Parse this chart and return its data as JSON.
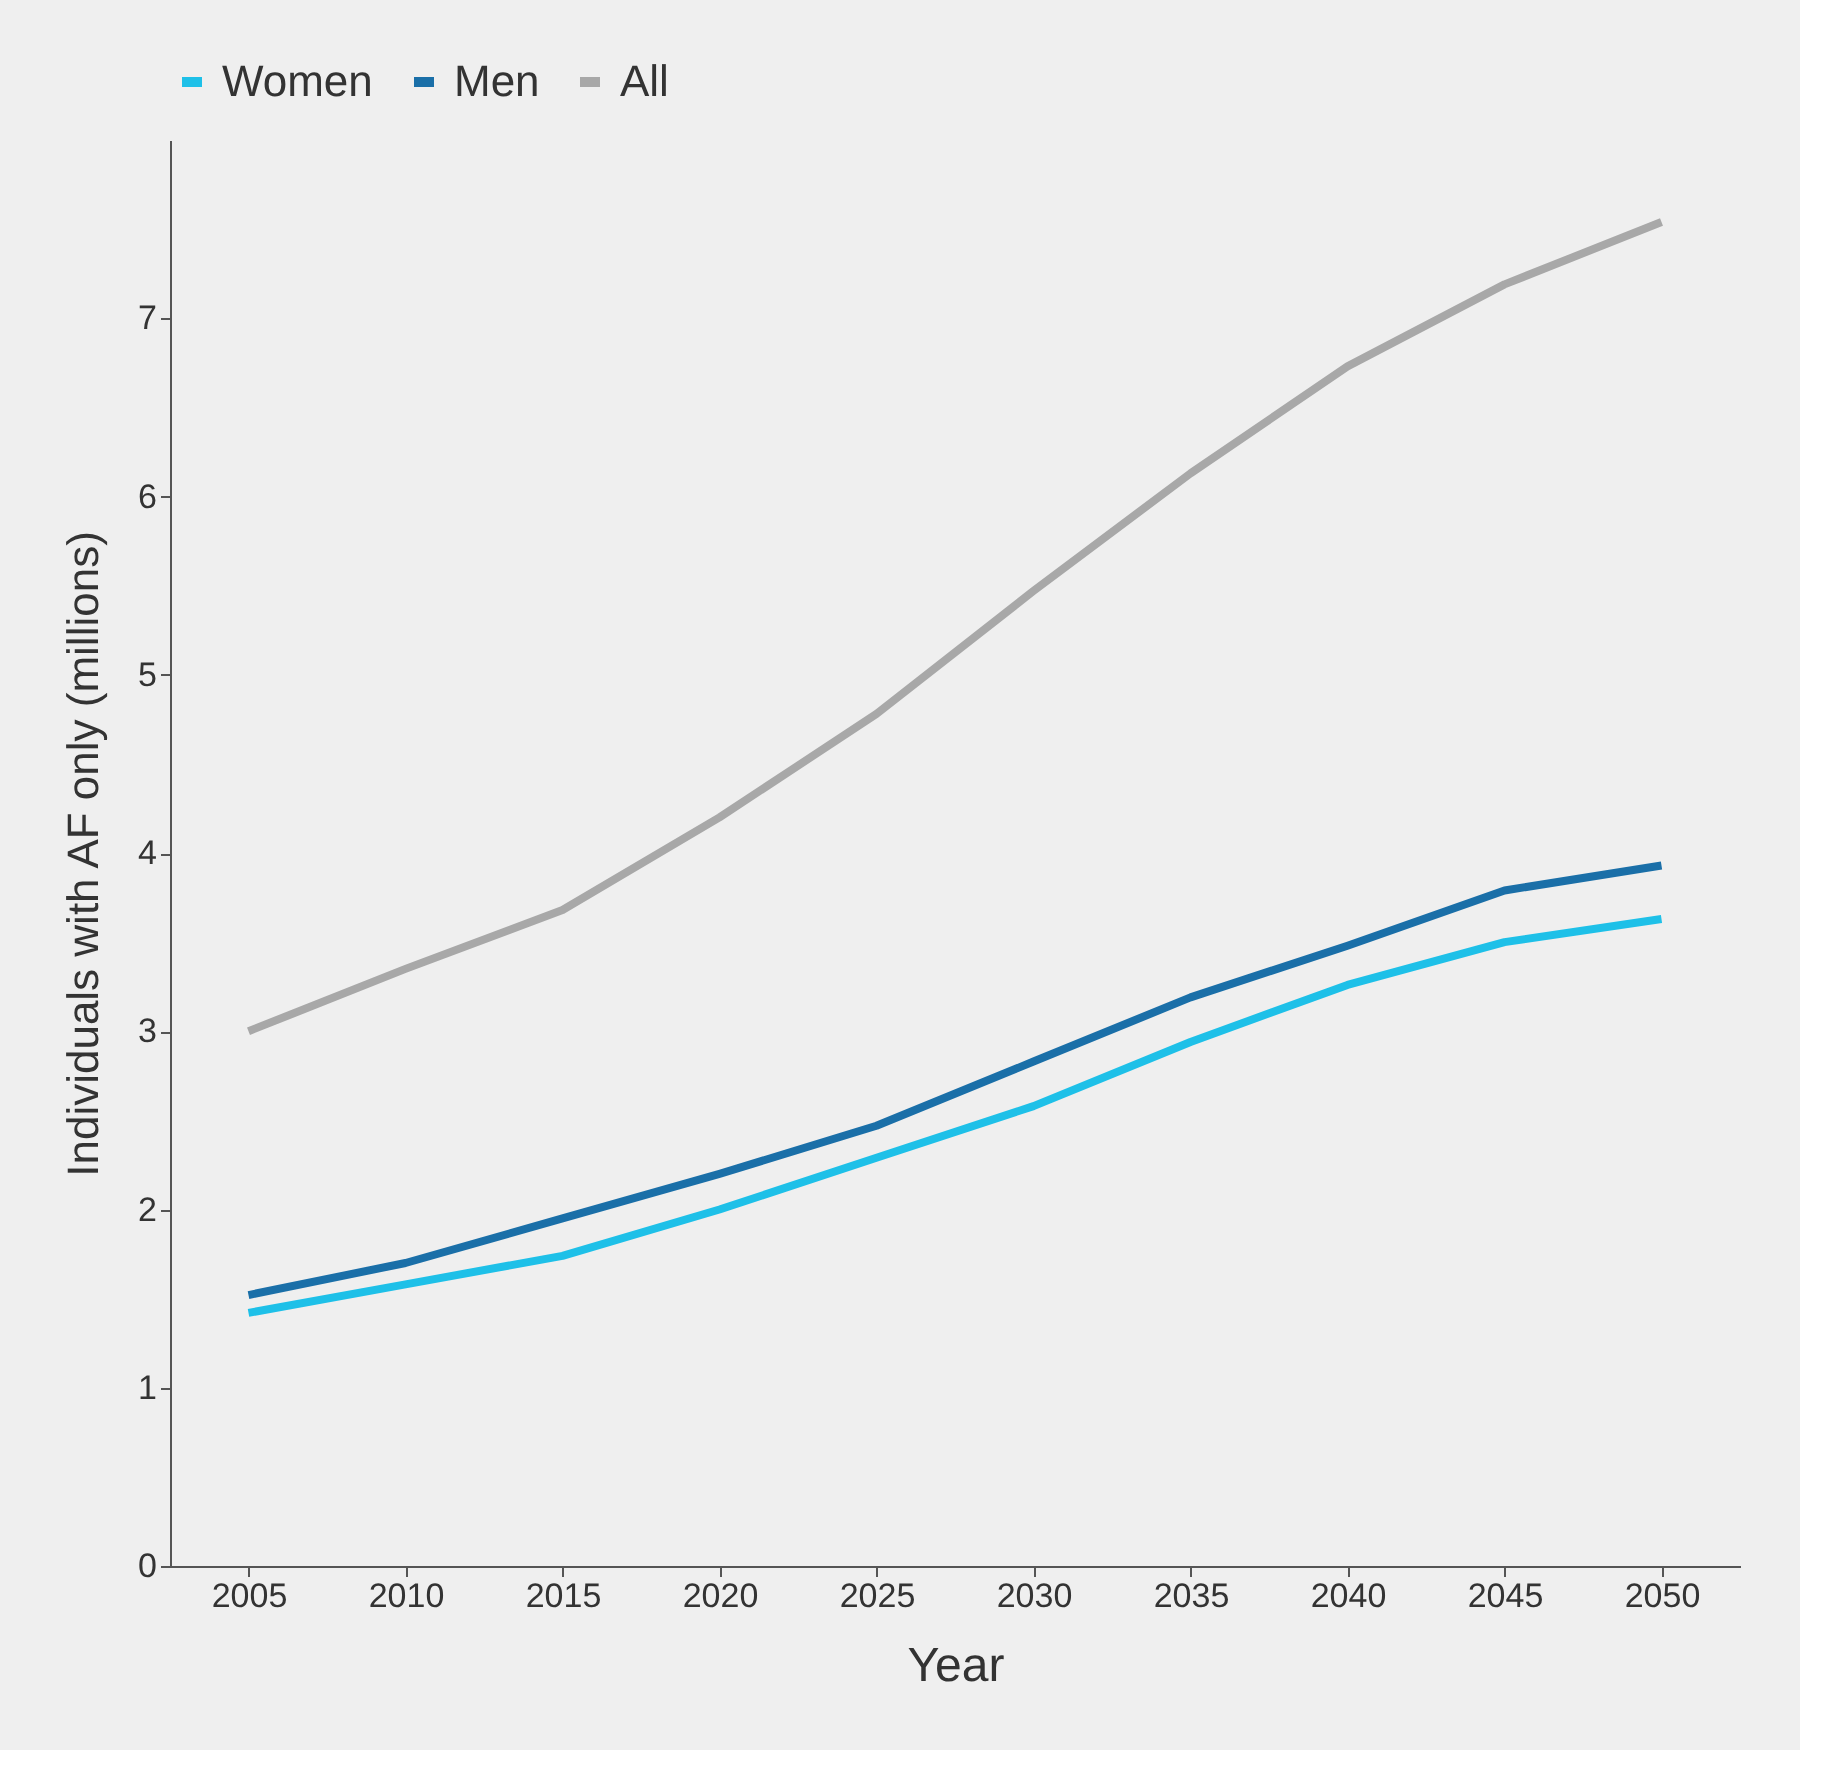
{
  "chart_data": {
    "type": "line",
    "xlabel": "Year",
    "ylabel": "Individuals with AF only (millions)",
    "x": [
      2005,
      2010,
      2015,
      2020,
      2025,
      2030,
      2035,
      2040,
      2045,
      2050
    ],
    "series": [
      {
        "name": "Women",
        "color": "#1ec0e8",
        "values": [
          1.42,
          1.58,
          1.74,
          2.0,
          2.29,
          2.58,
          2.94,
          3.26,
          3.5,
          3.63
        ]
      },
      {
        "name": "Men",
        "color": "#1a6fa8",
        "values": [
          1.52,
          1.7,
          1.95,
          2.2,
          2.47,
          2.83,
          3.19,
          3.48,
          3.79,
          3.93
        ]
      },
      {
        "name": "All",
        "color": "#a8a8a8",
        "values": [
          3.0,
          3.35,
          3.68,
          4.2,
          4.78,
          5.47,
          6.13,
          6.73,
          7.19,
          7.54
        ]
      }
    ],
    "xlim": [
      2002.5,
      2052.5
    ],
    "xticks": [
      2005,
      2010,
      2015,
      2020,
      2025,
      2030,
      2035,
      2040,
      2045,
      2050
    ],
    "ylim": [
      0,
      8
    ],
    "yticks": [
      0,
      1,
      2,
      3,
      4,
      5,
      6,
      7
    ],
    "grid": false,
    "legend": "top",
    "marker": "none",
    "line_style": "solid"
  }
}
